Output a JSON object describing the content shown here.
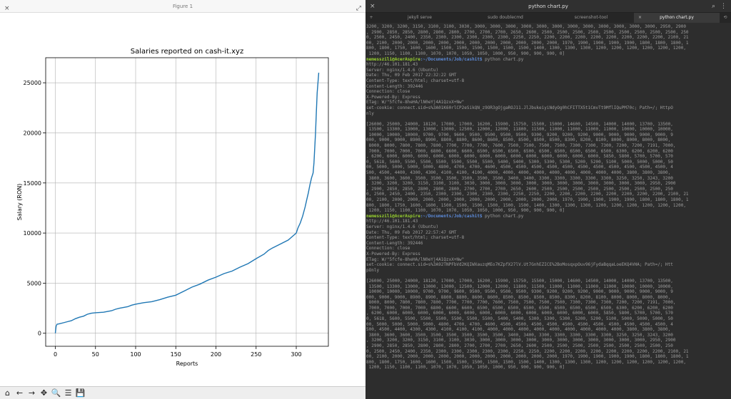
{
  "figure_window": {
    "title": "Figure 1",
    "close": "×",
    "maximize": "⤢"
  },
  "chart_data": {
    "type": "line",
    "title": "Salaries reported on cash-it.xyz",
    "xlabel": "Reports",
    "ylabel": "Salary (RON)",
    "xticks": [
      0,
      50,
      100,
      150,
      200,
      250,
      300
    ],
    "yticks": [
      0,
      5000,
      10000,
      15000,
      20000,
      25000
    ],
    "xlim": [
      -12,
      340
    ],
    "ylim": [
      -1300,
      27500
    ],
    "grid": true,
    "color": "#1f77b4",
    "points": [
      [
        0,
        0
      ],
      [
        1,
        700
      ],
      [
        2,
        900
      ],
      [
        5,
        950
      ],
      [
        10,
        1050
      ],
      [
        15,
        1150
      ],
      [
        20,
        1250
      ],
      [
        25,
        1450
      ],
      [
        30,
        1600
      ],
      [
        35,
        1700
      ],
      [
        40,
        1900
      ],
      [
        45,
        2000
      ],
      [
        50,
        2050
      ],
      [
        60,
        2100
      ],
      [
        70,
        2250
      ],
      [
        75,
        2400
      ],
      [
        80,
        2500
      ],
      [
        90,
        2650
      ],
      [
        95,
        2800
      ],
      [
        100,
        2900
      ],
      [
        110,
        3050
      ],
      [
        120,
        3150
      ],
      [
        130,
        3350
      ],
      [
        140,
        3600
      ],
      [
        150,
        3800
      ],
      [
        155,
        4000
      ],
      [
        160,
        4200
      ],
      [
        170,
        4600
      ],
      [
        180,
        4900
      ],
      [
        190,
        5300
      ],
      [
        200,
        5600
      ],
      [
        210,
        5950
      ],
      [
        220,
        6200
      ],
      [
        230,
        6600
      ],
      [
        240,
        6950
      ],
      [
        250,
        7450
      ],
      [
        260,
        7900
      ],
      [
        265,
        8250
      ],
      [
        270,
        8500
      ],
      [
        280,
        8900
      ],
      [
        290,
        9300
      ],
      [
        295,
        9650
      ],
      [
        300,
        10000
      ],
      [
        302,
        10500
      ],
      [
        305,
        11000
      ],
      [
        308,
        11700
      ],
      [
        311,
        12600
      ],
      [
        313,
        13300
      ],
      [
        315,
        14000
      ],
      [
        317,
        14800
      ],
      [
        319,
        15500
      ],
      [
        321,
        16000
      ],
      [
        322,
        17000
      ],
      [
        323,
        18500
      ],
      [
        324,
        20000
      ],
      [
        325,
        22000
      ],
      [
        326,
        24000
      ],
      [
        327,
        25000
      ],
      [
        328,
        26000
      ]
    ]
  },
  "toolbar": {
    "items": [
      {
        "name": "home-icon",
        "glyph": "⌂"
      },
      {
        "name": "back-icon",
        "glyph": "←"
      },
      {
        "name": "forward-icon",
        "glyph": "→"
      },
      {
        "name": "pan-icon",
        "glyph": "✥"
      },
      {
        "name": "zoom-icon",
        "glyph": "🔍"
      },
      {
        "name": "configure-icon",
        "glyph": "☰"
      },
      {
        "name": "save-icon",
        "glyph": "💾"
      }
    ]
  },
  "terminal": {
    "title": "python chart.py",
    "close": "×",
    "tabs": [
      {
        "label": "jekyll serve",
        "active": false
      },
      {
        "label": "sudo doublecmd",
        "active": false
      },
      {
        "label": "screenshot-tool",
        "active": false
      },
      {
        "label": "python chart.py",
        "active": true
      }
    ],
    "lines": [
      {
        "t": "3200, 3200, 3200, 3150, 3100, 3100, 3030, 3000, 3000, 3000, 3000, 3000, 3000, 3000, 3000, 3000, 3000, 3000, 3000, 2950, 2900"
      },
      {
        "t": ", 2900, 2850, 2850, 2800, 2800, 2800, 2700, 2700, 2700, 2650, 2600, 2500, 2500, 2500, 2500, 2500, 2500, 2500, 2500, 2500, 250"
      },
      {
        "t": "0, 2500, 2450, 2400, 2350, 2300, 2300, 2300, 2300, 2300, 2250, 2250, 2200, 2200, 2200, 2200, 2200, 2200, 2200, 2200, 2100, 21"
      },
      {
        "t": "00, 2100, 2000, 2000, 2000, 2000, 2000, 2000, 2000, 2000, 2000, 2000, 2000, 1970, 1900, 1900, 1900, 1900, 1800, 1800, 1800, 1"
      },
      {
        "t": "800, 1800, 1750, 1600, 1600, 1500, 1500, 1500, 1500, 1500, 1500, 1400, 1300, 1300, 1300, 1200, 1200, 1200, 1200, 1200, 1200,"
      },
      {
        "t": " 1200, 1150, 1100, 1100, 1070, 1070, 1050, 1050, 1000, 950, 900, 900, 900, 0]"
      },
      {
        "u": "nemesszili@AcerAspire",
        "p": ":~/Documents/Job/cashit$",
        "t": " python chart.py"
      },
      {
        "t": "http://46.101.181.43"
      },
      {
        "t": "Server: nginx/1.4.6 (Ubuntu)"
      },
      {
        "t": "Date: Thu, 09 Feb 2017 22:32:22 GMT"
      },
      {
        "t": "Content-Type: text/html; charset=utf-8"
      },
      {
        "t": "Content-Length: 392446"
      },
      {
        "t": "Connection: close"
      },
      {
        "t": "X-Powered-By: Express"
      },
      {
        "t": "ETag: W/\"5fcfe-8heHA/lN0eYj4A1QzxX+Nw\""
      },
      {
        "t": "set-cookie: connect.sid=s%3A01K60rlCP2eSikQN_z9OR3gOjgaROJ11.JlJbukeiyiNdyOg0hCFITTX5t1CmvTt9MflIQuPM70c; Path=/; HttpO"
      },
      {
        "t": "nly"
      },
      {
        "t": ""
      },
      {
        "t": "[26000, 25000, 24000, 18120, 17000, 17000, 16200, 15900, 15750, 15500, 15000, 14600, 14500, 14000, 14000, 13700, 13500,"
      },
      {
        "t": " 13500, 13300, 13000, 13000, 13000, 12500, 12000, 12000, 11800, 11500, 11000, 11000, 11000, 11000, 10000, 10000, 10000,"
      },
      {
        "t": " 10000, 10000, 10000, 9700, 9700, 9600, 9500, 9500, 9500, 9500, 9300, 9200, 9200, 9200, 9000, 9000, 9000, 9000, 9000, 9"
      },
      {
        "t": "000, 9000, 9000, 8900, 8900, 8800, 8800, 8600, 8600, 8500, 8500, 8500, 8500, 8300, 8200, 8100, 8000, 8000, 8000, 8000,"
      },
      {
        "t": " 8000, 8000, 7800, 7800, 7800, 7700, 7700, 7700, 7600, 7500, 7500, 7500, 7500, 7300, 7300, 7300, 7200, 7200, 7191, 7000,"
      },
      {
        "t": " 7000, 7000, 7000, 7000, 6800, 6600, 6600, 6500, 6500, 6500, 6500, 6500, 6500, 6500, 6500, 6500, 6300, 6200, 6200, 6200"
      },
      {
        "t": ", 6200, 6000, 6000, 6000, 6000, 6000, 6000, 6000, 6000, 6000, 6000, 6000, 6000, 6000, 6000, 5850, 5800, 5700, 5700, 570"
      },
      {
        "t": "0, 5618, 5600, 5500, 5500, 5500, 5500, 5500, 5500, 5400, 5400, 5300, 5300, 5300, 5200, 5200, 5100, 5000, 5000, 5000, 50"
      },
      {
        "t": "00, 5000, 5000, 5000, 5000, 4800, 4700, 4700, 4600, 4500, 4500, 4500, 4500, 4500, 4500, 4500, 4500, 4500, 4500, 4500, 4"
      },
      {
        "t": "500, 4500, 4400, 4300, 4300, 4100, 4100, 4100, 4000, 4000, 4000, 4000, 4000, 4000, 4000, 4000, 4000, 3800, 3800, 3800,"
      },
      {
        "t": " 3800, 3600, 3600, 3500, 3500, 3500, 3500, 3500, 3500, 3400, 3400, 3300, 3300, 3300, 3300, 3300, 3250, 3250, 3243, 3200"
      },
      {
        "t": ", 3200, 3200, 3200, 3150, 3100, 3100, 3030, 3000, 3000, 3000, 3000, 3000, 3000, 3000, 3000, 3000, 3000, 3000, 2950, 2900"
      },
      {
        "t": ", 2900, 2850, 2850, 2800, 2800, 2800, 2700, 2700, 2700, 2650, 2600, 2500, 2500, 2500, 2500, 2500, 2500, 2500, 2500, 250"
      },
      {
        "t": "0, 2500, 2450, 2400, 2350, 2300, 2300, 2300, 2300, 2300, 2250, 2250, 2200, 2200, 2200, 2200, 2200, 2200, 2200, 2200, 2100, 21"
      },
      {
        "t": "00, 2100, 2000, 2000, 2000, 2000, 2000, 2000, 2000, 2000, 2000, 2000, 2000, 1970, 1900, 1900, 1900, 1900, 1800, 1800, 1800, 1"
      },
      {
        "t": "800, 1800, 1750, 1600, 1600, 1500, 1500, 1500, 1500, 1500, 1500, 1400, 1300, 1300, 1300, 1200, 1200, 1200, 1200, 1200, 1200,"
      },
      {
        "t": " 1200, 1150, 1100, 1100, 1070, 1070, 1050, 1050, 1000, 950, 900, 900, 900, 0]"
      },
      {
        "u": "nemesszili@AcerAspire",
        "p": ":~/Documents/Job/cashit$",
        "t": " python chart.py"
      },
      {
        "t": "http://46.101.181.43"
      },
      {
        "t": "Server: nginx/1.4.6 (Ubuntu)"
      },
      {
        "t": "Date: Thu, 09 Feb 2017 22:57:47 GMT"
      },
      {
        "t": "Content-Type: text/html; charset=utf-8"
      },
      {
        "t": "Content-Length: 392446"
      },
      {
        "t": "Connection: close"
      },
      {
        "t": "X-Powered-By: Express"
      },
      {
        "t": "ETag: W/\"5fcfe-8heHA/lN0eYj4A1QzxX+Nw\""
      },
      {
        "t": "set-cookie: connect.sid=s%3A92TNPFbVd2KQIWXauzqMEo7KZpfX27lV.Ut7GnhEZICE%2BoMosqxpOuv96jFydaBqqaLoeEKQ4VHA; Path=/; Htt"
      },
      {
        "t": "pOnly"
      },
      {
        "t": ""
      },
      {
        "t": "[26000, 25000, 24000, 18120, 17000, 17000, 16200, 15900, 15750, 15500, 15000, 14600, 14500, 14000, 14000, 13700, 13500,"
      },
      {
        "t": " 13500, 13300, 13000, 13000, 13000, 12500, 12000, 12000, 11800, 11500, 11000, 11000, 11000, 11000, 10000, 10000, 10000,"
      },
      {
        "t": " 10000, 10000, 10000, 9700, 9700, 9600, 9500, 9500, 9500, 9500, 9300, 9200, 9200, 9200, 9000, 9000, 9000, 9000, 9000, 9"
      },
      {
        "t": "000, 9000, 9000, 8900, 8900, 8800, 8800, 8600, 8600, 8500, 8500, 8500, 8500, 8300, 8200, 8100, 8000, 8000, 8000, 8000,"
      },
      {
        "t": " 8000, 8000, 7800, 7800, 7800, 7700, 7700, 7700, 7600, 7500, 7500, 7500, 7500, 7300, 7300, 7300, 7200, 7200, 7191, 7000,"
      },
      {
        "t": " 7000, 7000, 7000, 7000, 6800, 6600, 6600, 6500, 6500, 6500, 6500, 6500, 6500, 6500, 6500, 6500, 6300, 6200, 6200, 6200"
      },
      {
        "t": ", 6200, 6000, 6000, 6000, 6000, 6000, 6000, 6000, 6000, 6000, 6000, 6000, 6000, 6000, 6000, 5850, 5800, 5700, 5700, 570"
      },
      {
        "t": "0, 5618, 5600, 5500, 5500, 5500, 5500, 5500, 5500, 5400, 5400, 5300, 5300, 5300, 5200, 5200, 5100, 5000, 5000, 5000, 50"
      },
      {
        "t": "00, 5000, 5000, 5000, 5000, 4800, 4700, 4700, 4600, 4500, 4500, 4500, 4500, 4500, 4500, 4500, 4500, 4500, 4500, 4500, 4"
      },
      {
        "t": "500, 4500, 4400, 4300, 4300, 4100, 4100, 4100, 4000, 4000, 4000, 4000, 4000, 4000, 4000, 4000, 4000, 3800, 3800, 3800,"
      },
      {
        "t": " 3800, 3600, 3600, 3500, 3500, 3500, 3500, 3500, 3500, 3400, 3400, 3300, 3300, 3300, 3300, 3300, 3250, 3250, 3243, 3200"
      },
      {
        "t": ", 3200, 3200, 3200, 3150, 3100, 3100, 3030, 3000, 3000, 3000, 3000, 3000, 3000, 3000, 3000, 3000, 3000, 3000, 2950, 2900"
      },
      {
        "t": ", 2900, 2850, 2850, 2800, 2800, 2800, 2700, 2700, 2700, 2650, 2600, 2500, 2500, 2500, 2500, 2500, 2500, 2500, 2500, 250"
      },
      {
        "t": "0, 2500, 2450, 2400, 2350, 2300, 2300, 2300, 2300, 2300, 2250, 2250, 2200, 2200, 2200, 2200, 2200, 2200, 2200, 2200, 2100, 21"
      },
      {
        "t": "00, 2100, 2000, 2000, 2000, 2000, 2000, 2000, 2000, 2000, 2000, 2000, 2000, 1970, 1900, 1900, 1900, 1900, 1800, 1800, 1800, 1"
      },
      {
        "t": "800, 1800, 1750, 1600, 1600, 1500, 1500, 1500, 1500, 1500, 1500, 1400, 1300, 1300, 1300, 1200, 1200, 1200, 1200, 1200, 1200,"
      },
      {
        "t": " 1200, 1150, 1100, 1100, 1070, 1070, 1050, 1050, 1000, 950, 900, 900, 900, 0]"
      }
    ]
  }
}
